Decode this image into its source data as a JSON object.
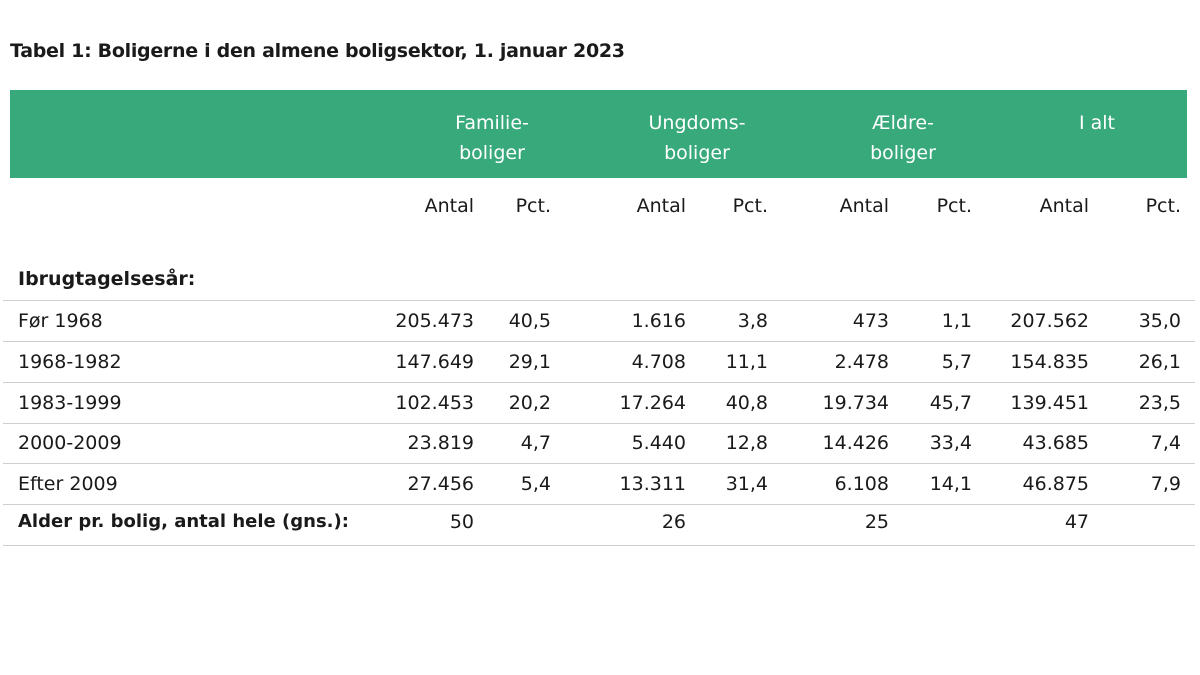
{
  "title": "Tabel 1: Boligerne i den almene boligsektor, 1. januar 2023",
  "groups": [
    {
      "line1": "Familie-",
      "line2": "boliger"
    },
    {
      "line1": "Ungdoms-",
      "line2": "boliger"
    },
    {
      "line1": "Ældre-",
      "line2": "boliger"
    },
    {
      "line1": "I alt",
      "line2": ""
    }
  ],
  "subheaders": [
    "Antal",
    "Pct.",
    "Antal",
    "Pct.",
    "Antal",
    "Pct.",
    "Antal",
    "Pct."
  ],
  "section_label": "Ibrugtagelsesår:",
  "rows": [
    {
      "label": "Før 1968",
      "values": [
        "205.473",
        "40,5",
        "1.616",
        "3,8",
        "473",
        "1,1",
        "207.562",
        "35,0"
      ]
    },
    {
      "label": "1968-1982",
      "values": [
        "147.649",
        "29,1",
        "4.708",
        "11,1",
        "2.478",
        "5,7",
        "154.835",
        "26,1"
      ]
    },
    {
      "label": "1983-1999",
      "values": [
        "102.453",
        "20,2",
        "17.264",
        "40,8",
        "19.734",
        "45,7",
        "139.451",
        "23,5"
      ]
    },
    {
      "label": "2000-2009",
      "values": [
        "23.819",
        "4,7",
        "5.440",
        "12,8",
        "14.426",
        "33,4",
        "43.685",
        "7,4"
      ]
    },
    {
      "label": "Efter 2009",
      "values": [
        "27.456",
        "5,4",
        "13.311",
        "31,4",
        "6.108",
        "14,1",
        "46.875",
        "7,9"
      ]
    },
    {
      "label": "Alder pr. bolig, antal hele (gns.):",
      "values": [
        "50",
        "",
        "26",
        "",
        "25",
        "",
        "47",
        ""
      ],
      "bold": true
    }
  ],
  "colors": {
    "header_band": "#38a97b",
    "header_text": "#ffffff",
    "rule": "#cfcfcf"
  }
}
